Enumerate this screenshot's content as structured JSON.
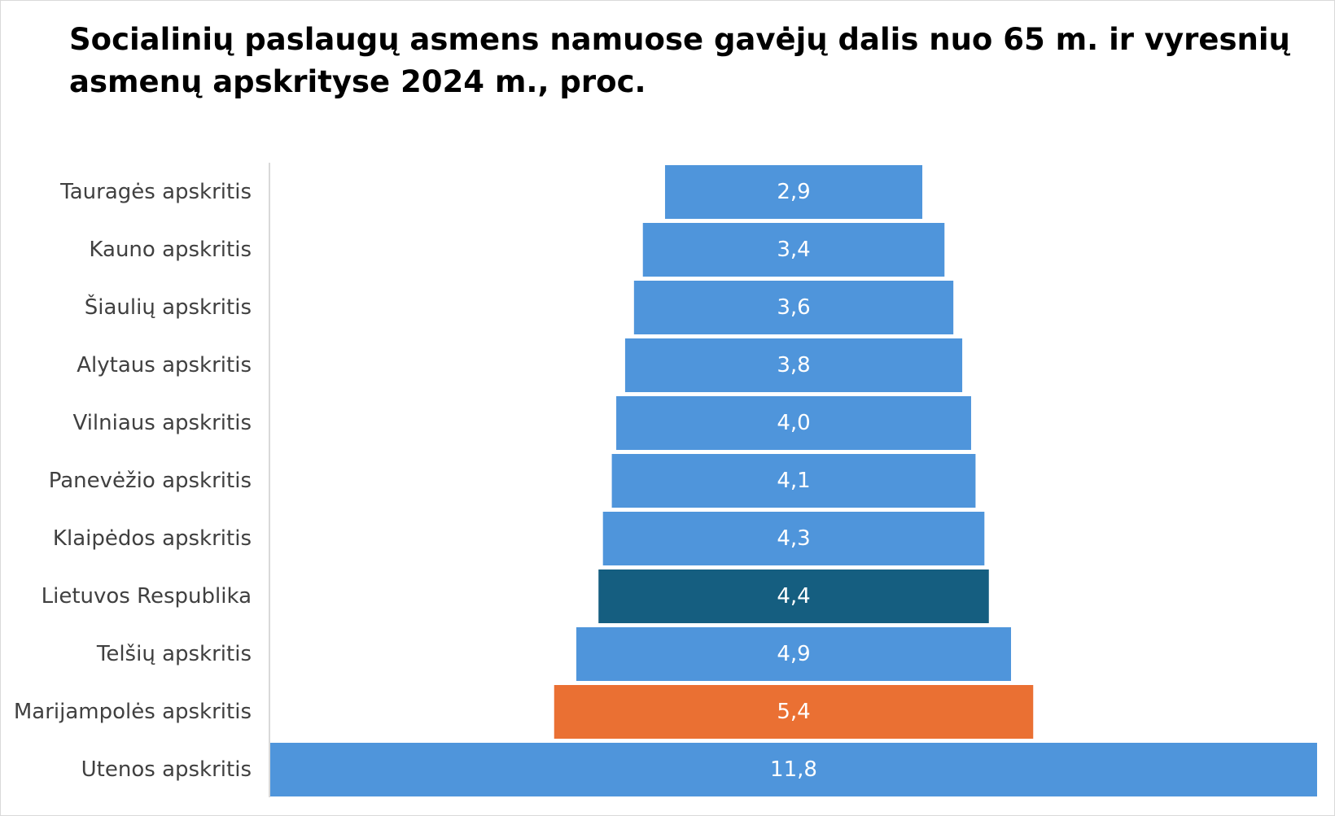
{
  "chart_data": {
    "type": "bar",
    "orientation": "horizontal",
    "layout": "centered-funnel",
    "title": "Socialinių paslaugų asmens namuose gavėjų dalis nuo 65 m. ir vyresnių asmenų apskrityse 2024 m., proc.",
    "categories": [
      "Tauragės apskritis",
      "Kauno apskritis",
      "Šiaulių apskritis",
      "Alytaus apskritis",
      "Vilniaus apskritis",
      "Panevėžio apskritis",
      "Klaipėdos apskritis",
      "Lietuvos Respublika",
      "Telšių apskritis",
      "Marijampolės apskritis",
      "Utenos apskritis"
    ],
    "values": [
      2.9,
      3.4,
      3.6,
      3.8,
      4.0,
      4.1,
      4.3,
      4.4,
      4.9,
      5.4,
      11.8
    ],
    "data_labels": [
      "2,9",
      "3,4",
      "3,6",
      "3,8",
      "4,0",
      "4,1",
      "4,3",
      "4,4",
      "4,9",
      "5,4",
      "11,8"
    ],
    "bar_colors": [
      "#4f95db",
      "#4f95db",
      "#4f95db",
      "#4f95db",
      "#4f95db",
      "#4f95db",
      "#4f95db",
      "#155e80",
      "#4f95db",
      "#ea7033",
      "#4f95db"
    ],
    "xlim": [
      0,
      11.8
    ],
    "grid": false,
    "legend": "none"
  }
}
